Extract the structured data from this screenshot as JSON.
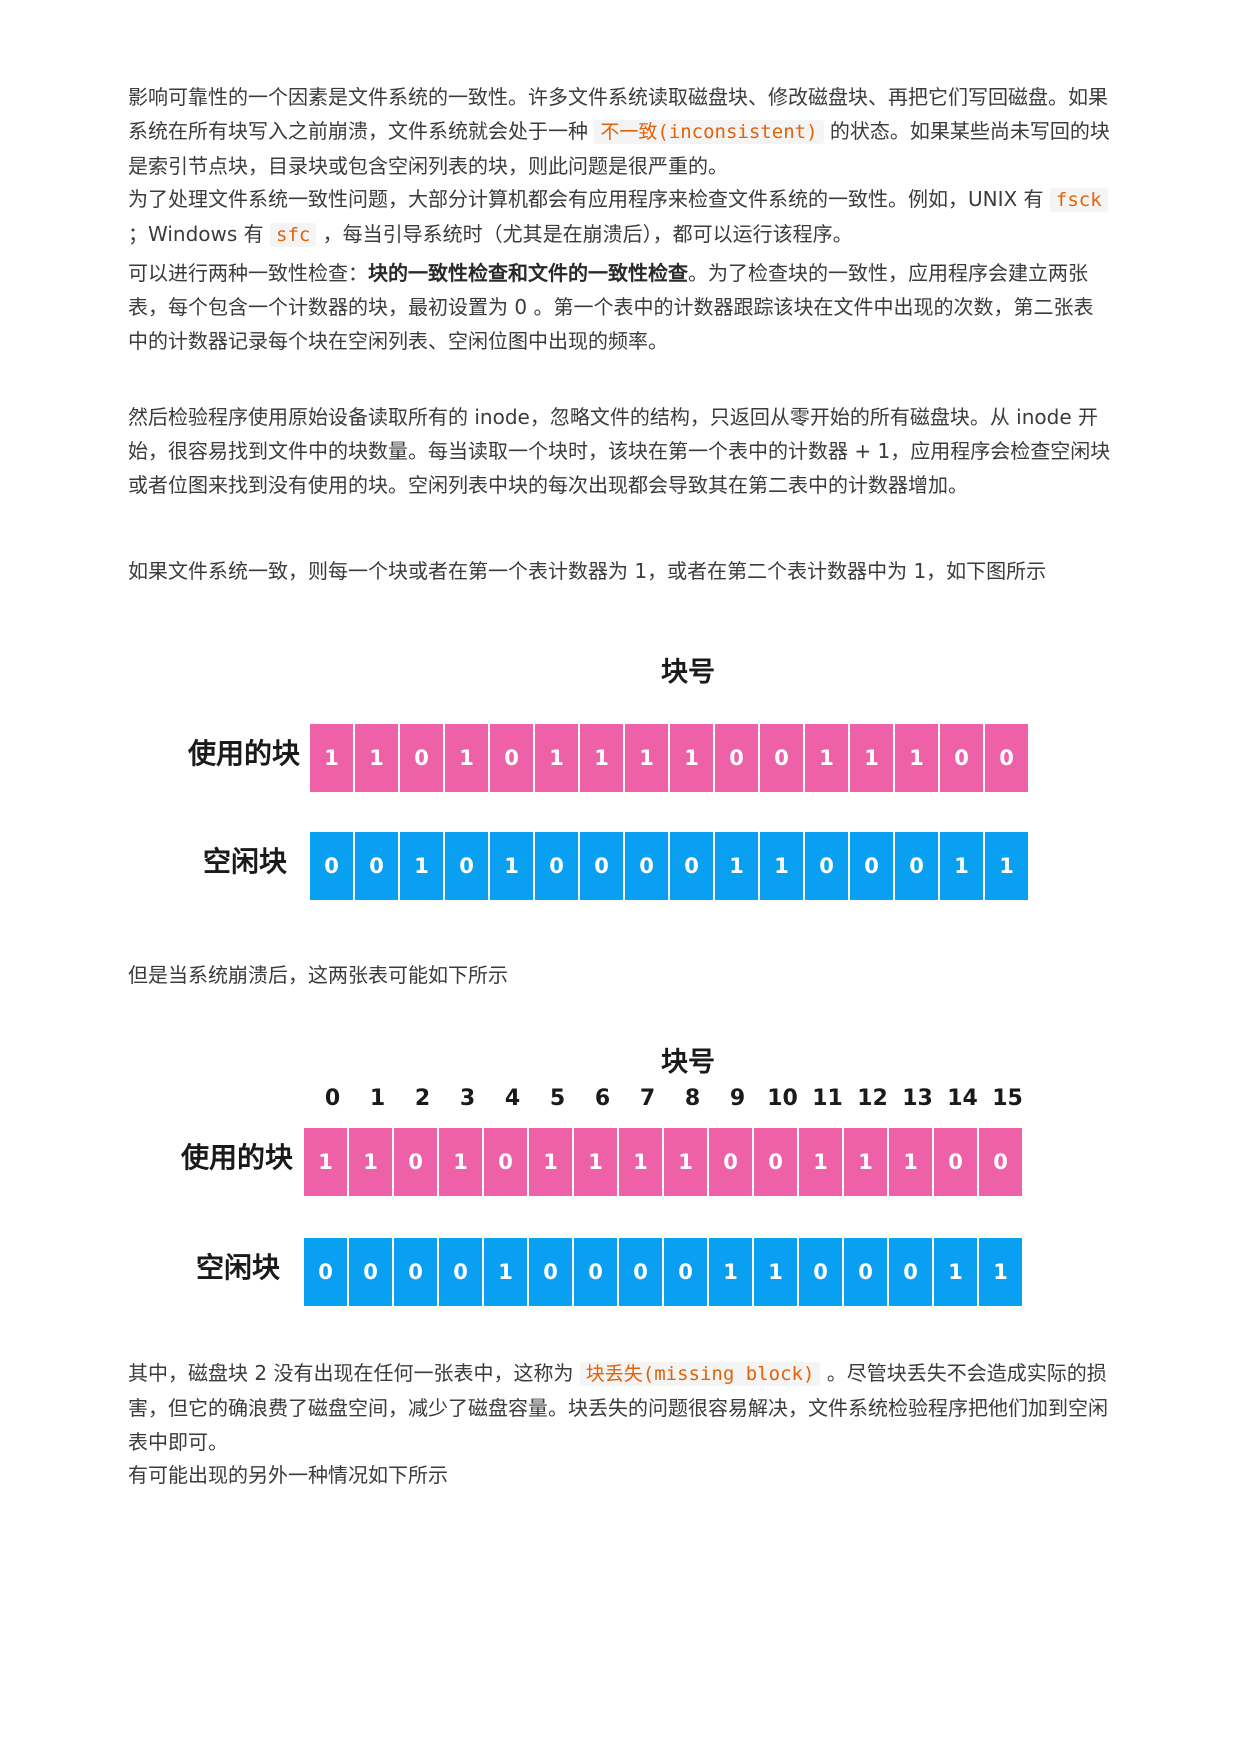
{
  "paragraphs": {
    "p1": {
      "t1": "影响可靠性的一个因素是文件系统的一致性。许多文件系统读取磁盘块、修改磁盘块、再把它们写回磁盘。如果系统在所有块写入之前崩溃，文件系统就会处于一种 ",
      "code1": "不一致(inconsistent)",
      "t2": " 的状态。如果某些尚未写回的块是索引节点块，目录块或包含空闲列表的块，则此问题是很严重的。"
    },
    "p2": {
      "t1": "为了处理文件系统一致性问题，大部分计算机都会有应用程序来检查文件系统的一致性。例如，UNIX 有 ",
      "code1": "fsck",
      "t2": " ；Windows 有 ",
      "code2": "sfc",
      "t3": " ，每当引导系统时（尤其是在崩溃后），都可以运行该程序。"
    },
    "p3": {
      "t1": "可以进行两种一致性检查：",
      "strong": "块的一致性检查和文件的一致性检查",
      "t2": "。为了检查块的一致性，应用程序会建立两张表，每个包含一个计数器的块，最初设置为 0 。第一个表中的计数器跟踪该块在文件中出现的次数，第二张表中的计数器记录每个块在空闲列表、空闲位图中出现的频率。"
    },
    "p4": "然后检验程序使用原始设备读取所有的 inode，忽略文件的结构，只返回从零开始的所有磁盘块。从 inode 开始，很容易找到文件中的块数量。每当读取一个块时，该块在第一个表中的计数器 + 1，应用程序会检查空闲块或者位图来找到没有使用的块。空闲列表中块的每次出现都会导致其在第二表中的计数器增加。",
    "p5": "如果文件系统一致，则每一个块或者在第一个表计数器为 1，或者在第二个表计数器中为 1，如下图所示",
    "p6": "但是当系统崩溃后，这两张表可能如下所示",
    "p7": {
      "t1": "其中，磁盘块 2 没有出现在任何一张表中，这称为 ",
      "code1": "块丢失(missing block)",
      "t2": " 。尽管块丢失不会造成实际的损害，但它的确浪费了磁盘空间，减少了磁盘容量。块丢失的问题很容易解决，文件系统检验程序把他们加到空闲表中即可。"
    },
    "p8": "有可能出现的另外一种情况如下所示"
  },
  "figure1": {
    "title": "块号",
    "used_label": "使用的块",
    "free_label": "空闲块",
    "used": [
      "1",
      "1",
      "0",
      "1",
      "0",
      "1",
      "1",
      "1",
      "1",
      "0",
      "0",
      "1",
      "1",
      "1",
      "0",
      "0"
    ],
    "free": [
      "0",
      "0",
      "1",
      "0",
      "1",
      "0",
      "0",
      "0",
      "0",
      "1",
      "1",
      "0",
      "0",
      "0",
      "1",
      "1"
    ]
  },
  "figure2": {
    "title": "块号",
    "used_label": "使用的块",
    "free_label": "空闲块",
    "indices": [
      "0",
      "1",
      "2",
      "3",
      "4",
      "5",
      "6",
      "7",
      "8",
      "9",
      "10",
      "11",
      "12",
      "13",
      "14",
      "15"
    ],
    "used": [
      "1",
      "1",
      "0",
      "1",
      "0",
      "1",
      "1",
      "1",
      "1",
      "0",
      "0",
      "1",
      "1",
      "1",
      "0",
      "0"
    ],
    "free": [
      "0",
      "0",
      "0",
      "0",
      "1",
      "0",
      "0",
      "0",
      "0",
      "1",
      "1",
      "0",
      "0",
      "0",
      "1",
      "1"
    ]
  },
  "colors": {
    "used_cell": "#ee60a8",
    "free_cell": "#0aa0f2",
    "code_text": "#e36209"
  }
}
